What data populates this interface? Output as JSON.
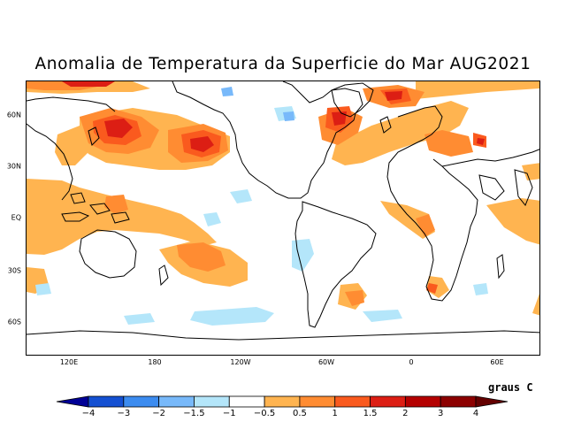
{
  "title": "Anomalia de Temperatura da Superficie do Mar AUG2021",
  "units_label": "graus C",
  "lat_labels": [
    "60N",
    "30N",
    "EQ",
    "30S",
    "60S"
  ],
  "lon_labels": [
    "120E",
    "180",
    "120W",
    "60W",
    "0",
    "60E"
  ],
  "colorbar": {
    "tick_labels": [
      "−4",
      "−3",
      "−2",
      "−1.5",
      "−1",
      "−0.5",
      "0.5",
      "1",
      "1.5",
      "2",
      "3",
      "4"
    ],
    "colors": [
      "#000096",
      "#1450d2",
      "#3c8cf0",
      "#78b9fa",
      "#b4e6fa",
      "#ffffff",
      "#ffb450",
      "#ff8c32",
      "#fa5a1e",
      "#dc1e14",
      "#b40000",
      "#8c0000",
      "#640000"
    ]
  },
  "anomaly_classes": {
    "warm_0_5_1": "#ffb450",
    "warm_1_1_5": "#ff8c32",
    "warm_1_5_2": "#fa5a1e",
    "warm_2_3": "#dc1e14",
    "warm_3_4": "#b40000",
    "cool_m1_m0_5": "#b4e6fa",
    "cool_m1_5_m1": "#78b9fa",
    "cool_m2_m1_5": "#3c8cf0"
  }
}
